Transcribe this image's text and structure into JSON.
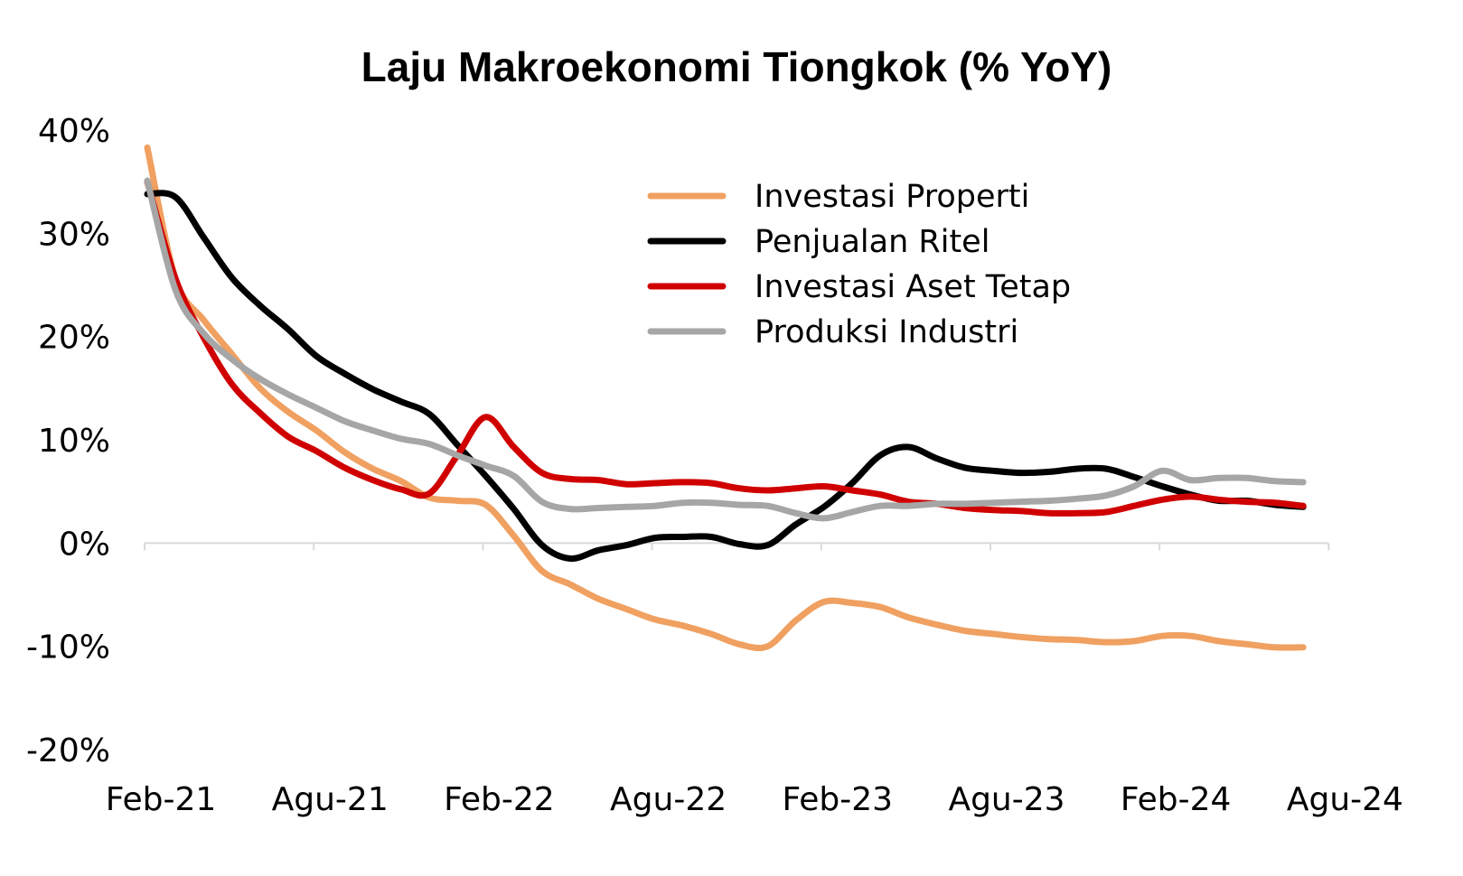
{
  "chart_data": {
    "type": "line",
    "title": "Laju Makroekonomi Tiongkok (% YoY)",
    "xlabel": "",
    "ylabel": "",
    "x": [
      "Feb-21",
      "Mar-21",
      "Apr-21",
      "Mei-21",
      "Jun-21",
      "Jul-21",
      "Agu-21",
      "Sep-21",
      "Okt-21",
      "Nov-21",
      "Des-21",
      "Jan-22",
      "Feb-22",
      "Mar-22",
      "Apr-22",
      "Mei-22",
      "Jun-22",
      "Jul-22",
      "Agu-22",
      "Sep-22",
      "Okt-22",
      "Nov-22",
      "Des-22",
      "Jan-23",
      "Feb-23",
      "Mar-23",
      "Apr-23",
      "Mei-23",
      "Jun-23",
      "Jul-23",
      "Agu-23",
      "Sep-23",
      "Okt-23",
      "Nov-23",
      "Des-23",
      "Jan-24",
      "Feb-24",
      "Mar-24",
      "Apr-24",
      "Mei-24",
      "Jun-24",
      "Jul-24"
    ],
    "xticks": [
      "Feb-21",
      "Agu-21",
      "Feb-22",
      "Agu-22",
      "Feb-23",
      "Agu-23",
      "Feb-24",
      "Agu-24"
    ],
    "yticks": [
      "40%",
      "30%",
      "20%",
      "10%",
      "0%",
      "-10%",
      "-20%"
    ],
    "ylim": [
      -20,
      40
    ],
    "grid": false,
    "legend_position": "top-right",
    "series": [
      {
        "name": "Investasi Properti",
        "color": "#F0A060",
        "values": [
          38.3,
          25.6,
          21.6,
          18.3,
          15.0,
          12.7,
          10.9,
          8.8,
          7.2,
          6.0,
          4.4,
          4.1,
          3.7,
          0.7,
          -2.7,
          -4.0,
          -5.4,
          -6.4,
          -7.4,
          -8.0,
          -8.8,
          -9.8,
          -10.0,
          -7.5,
          -5.7,
          -5.8,
          -6.2,
          -7.2,
          -7.9,
          -8.5,
          -8.8,
          -9.1,
          -9.3,
          -9.4,
          -9.6,
          -9.5,
          -9.0,
          -9.0,
          -9.5,
          -9.8,
          -10.1,
          -10.1
        ]
      },
      {
        "name": "Penjualan Ritel",
        "color": "#000000",
        "values": [
          33.8,
          33.5,
          29.6,
          25.7,
          23.0,
          20.7,
          18.1,
          16.4,
          14.9,
          13.7,
          12.5,
          9.5,
          6.5,
          3.3,
          -0.2,
          -1.5,
          -0.7,
          -0.2,
          0.5,
          0.6,
          0.6,
          -0.1,
          -0.2,
          1.8,
          3.5,
          5.8,
          8.5,
          9.3,
          8.2,
          7.3,
          7.0,
          6.8,
          6.9,
          7.2,
          7.2,
          6.4,
          5.5,
          4.7,
          4.1,
          4.1,
          3.7,
          3.5
        ]
      },
      {
        "name": "Investasi Aset Tetap",
        "color": "#D00000",
        "values": [
          35.0,
          25.6,
          19.9,
          15.4,
          12.6,
          10.3,
          8.9,
          7.3,
          6.1,
          5.2,
          4.8,
          8.5,
          12.2,
          9.3,
          6.8,
          6.2,
          6.1,
          5.7,
          5.8,
          5.9,
          5.8,
          5.3,
          5.1,
          5.3,
          5.5,
          5.1,
          4.7,
          4.0,
          3.8,
          3.4,
          3.2,
          3.1,
          2.9,
          2.9,
          3.0,
          3.6,
          4.2,
          4.5,
          4.2,
          4.0,
          3.9,
          3.6
        ]
      },
      {
        "name": "Produksi Industri",
        "color": "#A6A6A6",
        "values": [
          35.1,
          24.5,
          20.3,
          17.8,
          15.9,
          14.4,
          13.1,
          11.8,
          10.9,
          10.1,
          9.6,
          8.5,
          7.5,
          6.5,
          4.0,
          3.3,
          3.4,
          3.5,
          3.6,
          3.9,
          3.9,
          3.7,
          3.6,
          2.9,
          2.4,
          3.0,
          3.6,
          3.6,
          3.8,
          3.8,
          3.9,
          4.0,
          4.1,
          4.3,
          4.6,
          5.5,
          7.0,
          6.1,
          6.3,
          6.3,
          6.0,
          5.9
        ]
      }
    ]
  }
}
